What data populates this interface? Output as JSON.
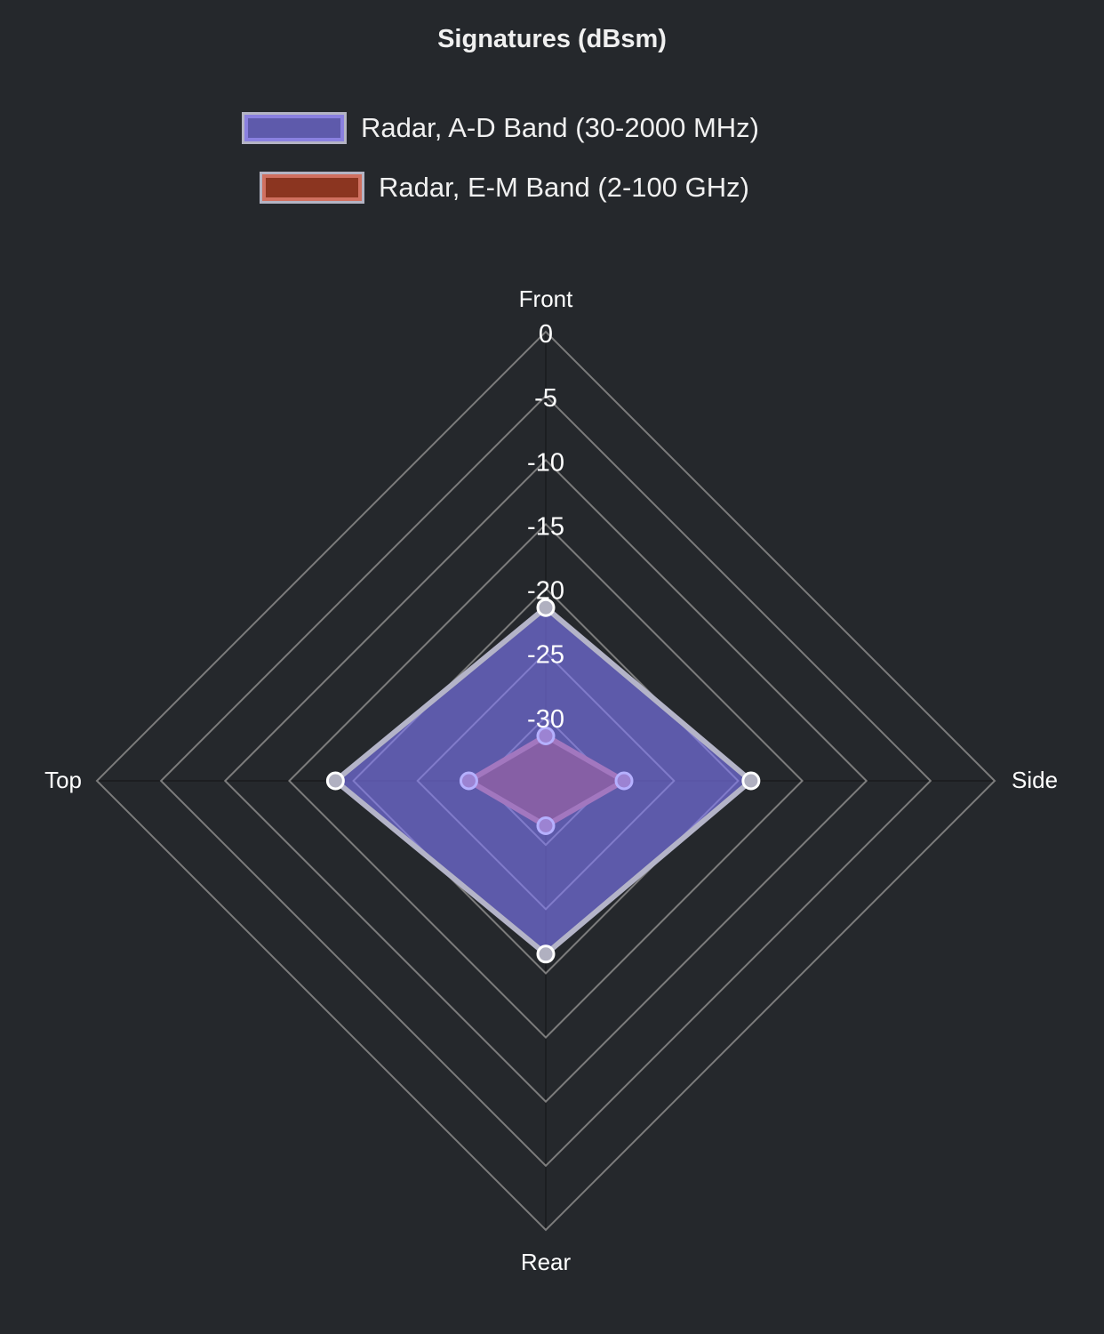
{
  "chart_data": {
    "type": "radar",
    "title": "Signatures (dBsm)",
    "labels": [
      "Front",
      "Side",
      "Rear",
      "Top"
    ],
    "r_range": [
      -35,
      0
    ],
    "ticks": [
      0,
      -5,
      -10,
      -15,
      -20,
      -25,
      -30
    ],
    "tick_labels": [
      "0",
      "-5",
      "-10",
      "-15",
      "-20",
      "-25",
      "-30"
    ],
    "legend_position": "top",
    "series": [
      {
        "name": "Radar, A-D Band (30-2000 MHz)",
        "values": [
          -21.5,
          -19,
          -21.5,
          -18.6
        ],
        "fill": "#847bff",
        "border": "#8a80e0",
        "color": "#5e5aab"
      },
      {
        "name": "Radar, E-M Band (2-100 GHz)",
        "values": [
          -31.5,
          -28.9,
          -31.5,
          -29
        ],
        "fill": "#8b3520",
        "border": "#d07060",
        "color": "#8b3520"
      }
    ]
  }
}
